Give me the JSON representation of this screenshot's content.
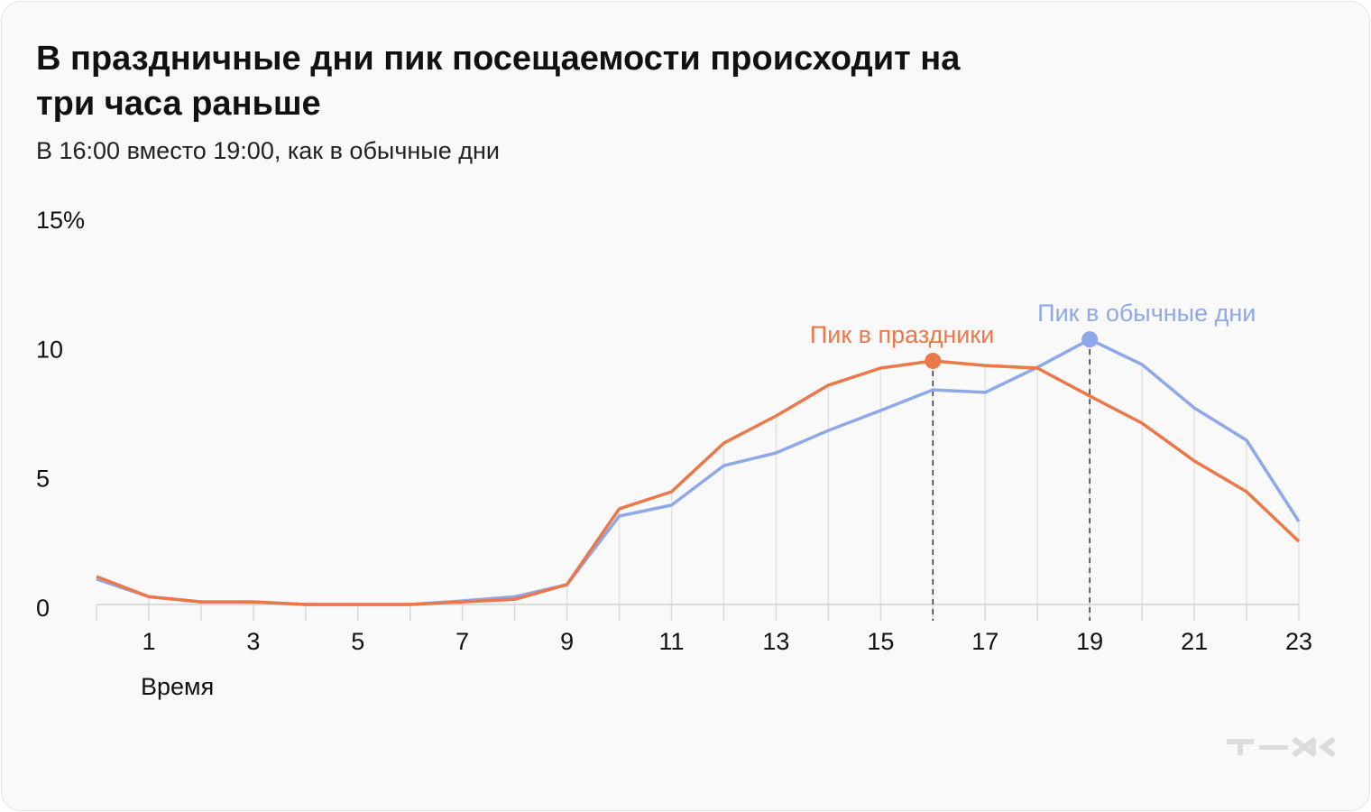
{
  "title": "В праздничные дни пик посещаемости происходит на три часа раньше",
  "subtitle": "В 16:00 вместо 19:00, как в обычные дни",
  "logo_text": "т—ж",
  "chart_data": {
    "type": "line",
    "xlabel": "Время",
    "ylabel": "",
    "x": [
      0,
      1,
      2,
      3,
      4,
      5,
      6,
      7,
      8,
      9,
      10,
      11,
      12,
      13,
      14,
      15,
      16,
      17,
      18,
      19,
      20,
      21,
      22,
      23
    ],
    "x_tick_labels": [
      "1",
      "3",
      "5",
      "7",
      "9",
      "11",
      "13",
      "15",
      "17",
      "19",
      "21",
      "23"
    ],
    "x_tick_values": [
      1,
      3,
      5,
      7,
      9,
      11,
      13,
      15,
      17,
      19,
      21,
      23
    ],
    "y_tick_labels": [
      "0",
      "5",
      "10",
      "15%"
    ],
    "y_tick_values": [
      0,
      5,
      10,
      15
    ],
    "ylim": [
      0,
      15
    ],
    "xlim": [
      0,
      23
    ],
    "grid": "vertical",
    "series": [
      {
        "key": "regular",
        "color": "#8ea8ea",
        "values": [
          0.98,
          0.3,
          0.1,
          0.1,
          0,
          0,
          0,
          0.14,
          0.3,
          0.77,
          3.42,
          3.84,
          5.37,
          5.86,
          6.73,
          7.5,
          8.3,
          8.2,
          9.17,
          10.25,
          9.28,
          7.6,
          6.35,
          3.21
        ]
      },
      {
        "key": "holiday",
        "color": "#ec7748",
        "values": [
          1.08,
          0.3,
          0.1,
          0.1,
          0,
          0,
          0,
          0.1,
          0.2,
          0.77,
          3.7,
          4.36,
          6.24,
          7.29,
          8.48,
          9.14,
          9.42,
          9.24,
          9.14,
          8.06,
          7.01,
          5.55,
          4.36,
          2.44
        ]
      }
    ],
    "annotations": [
      {
        "text": "Пик в праздники",
        "x": 16,
        "y": 9.42,
        "color": "#ec7748"
      },
      {
        "text": "Пик в обычные дни",
        "x": 19,
        "y": 10.25,
        "color": "#8ea8ea"
      }
    ]
  }
}
